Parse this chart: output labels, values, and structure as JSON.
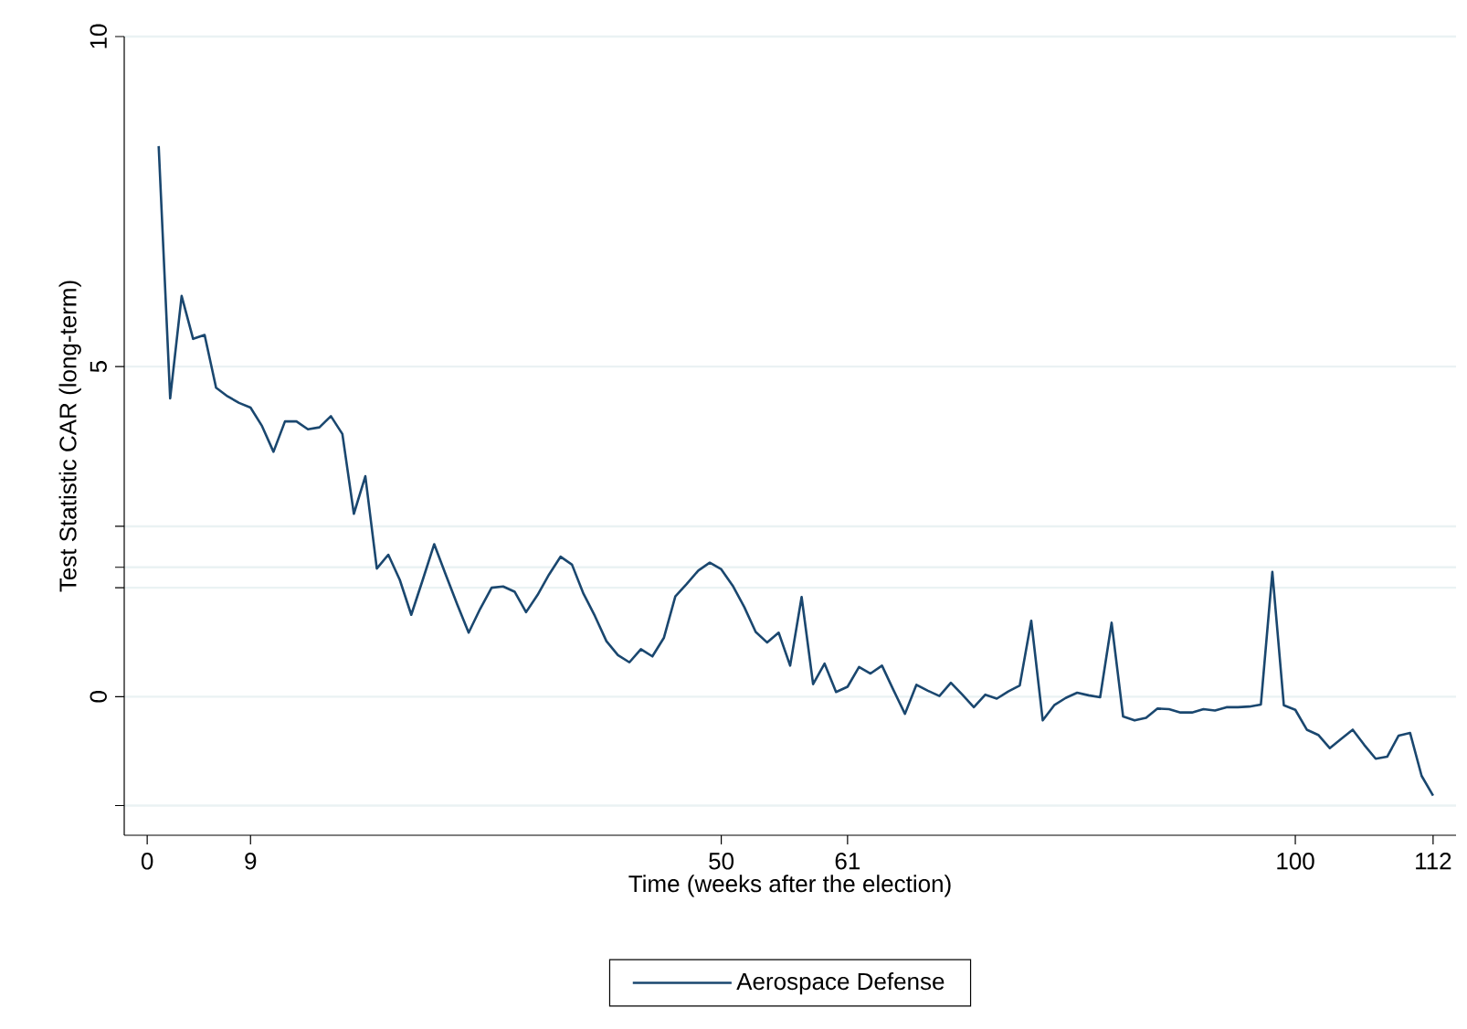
{
  "chart_data": {
    "type": "line",
    "xlabel": "Time (weeks after the election)",
    "ylabel": "Test Statistic CAR (long-term)",
    "x": [
      1,
      2,
      3,
      4,
      5,
      6,
      7,
      8,
      9,
      10,
      11,
      12,
      13,
      14,
      15,
      16,
      17,
      18,
      19,
      20,
      21,
      22,
      23,
      24,
      25,
      26,
      27,
      28,
      29,
      30,
      31,
      32,
      33,
      34,
      35,
      36,
      37,
      38,
      39,
      40,
      41,
      42,
      43,
      44,
      45,
      46,
      47,
      48,
      49,
      50,
      51,
      52,
      53,
      54,
      55,
      56,
      57,
      58,
      59,
      60,
      61,
      62,
      63,
      64,
      65,
      66,
      67,
      68,
      69,
      70,
      71,
      72,
      73,
      74,
      75,
      76,
      77,
      78,
      79,
      80,
      81,
      82,
      83,
      84,
      85,
      86,
      87,
      88,
      89,
      90,
      91,
      92,
      93,
      94,
      95,
      96,
      97,
      98,
      99,
      100,
      101,
      102,
      103,
      104,
      105,
      106,
      107,
      108,
      109,
      110,
      111,
      112
    ],
    "series": [
      {
        "name": "Aerospace Defense",
        "color": "#1a476f",
        "values": [
          8.34,
          4.52,
          6.07,
          5.42,
          5.48,
          4.68,
          4.55,
          4.45,
          4.38,
          4.1,
          3.71,
          4.17,
          4.17,
          4.05,
          4.08,
          4.25,
          3.98,
          2.77,
          3.34,
          1.94,
          2.15,
          1.77,
          1.24,
          1.77,
          2.31,
          1.85,
          1.4,
          0.97,
          1.33,
          1.65,
          1.67,
          1.59,
          1.28,
          1.54,
          1.85,
          2.12,
          2.0,
          1.56,
          1.22,
          0.84,
          0.63,
          0.52,
          0.72,
          0.61,
          0.89,
          1.52,
          1.71,
          1.91,
          2.03,
          1.93,
          1.68,
          1.36,
          0.98,
          0.82,
          0.97,
          0.47,
          1.51,
          0.19,
          0.5,
          0.07,
          0.15,
          0.45,
          0.35,
          0.47,
          0.1,
          -0.26,
          0.18,
          0.09,
          0.01,
          0.21,
          0.03,
          -0.16,
          0.03,
          -0.03,
          0.08,
          0.17,
          1.15,
          -0.36,
          -0.13,
          -0.02,
          0.06,
          0.02,
          -0.01,
          1.12,
          -0.3,
          -0.36,
          -0.32,
          -0.18,
          -0.19,
          -0.24,
          -0.24,
          -0.19,
          -0.21,
          -0.16,
          -0.16,
          -0.15,
          -0.12,
          1.89,
          -0.13,
          -0.2,
          -0.5,
          -0.58,
          -0.78,
          -0.64,
          -0.5,
          -0.73,
          -0.94,
          -0.91,
          -0.59,
          -0.55,
          -1.2,
          -1.5
        ]
      }
    ],
    "xlim": [
      -2,
      114
    ],
    "ylim": [
      -2.1,
      10
    ],
    "xticks": [
      0,
      9,
      50,
      61,
      100,
      112
    ],
    "yticks": [
      {
        "value": -1.65,
        "label": null
      },
      0,
      {
        "value": 1.65,
        "label": null
      },
      {
        "value": 1.96,
        "label": null
      },
      {
        "value": 2.58,
        "label": null
      },
      5,
      10
    ],
    "grid": "y",
    "legend": "bottom"
  }
}
